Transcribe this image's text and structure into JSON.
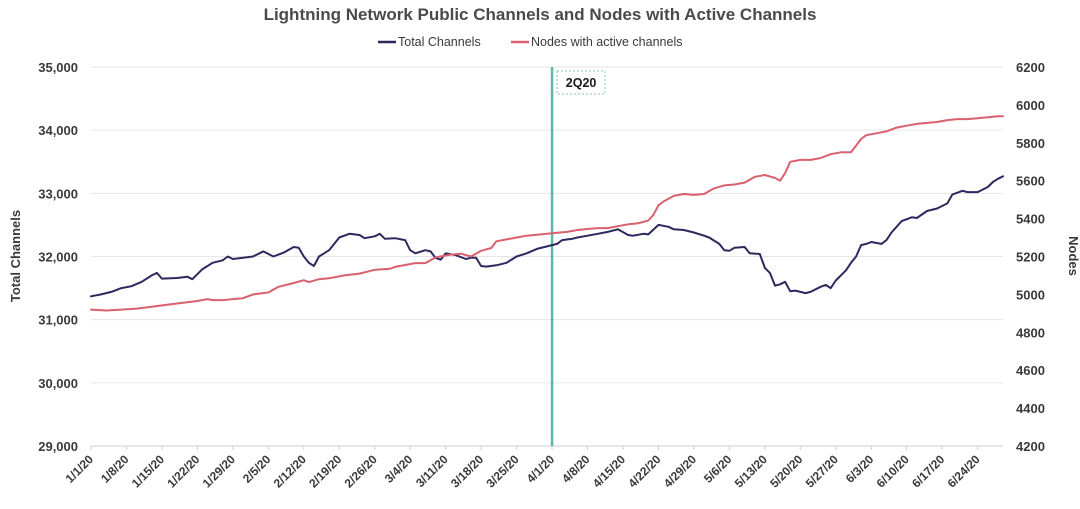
{
  "chart_data": {
    "type": "line",
    "title": "Lightning Network Public Channels and Nodes with Active Channels",
    "ylabel_left": "Total Channels",
    "ylabel_right": "Nodes",
    "ylim_left": [
      29000,
      35000
    ],
    "ylim_right": [
      4200,
      6200
    ],
    "yticks_left": [
      29000,
      30000,
      31000,
      32000,
      33000,
      34000,
      35000
    ],
    "ytick_labels_left": [
      "29,000",
      "30,000",
      "31,000",
      "32,000",
      "33,000",
      "34,000",
      "35,000"
    ],
    "yticks_right": [
      4200,
      4400,
      4600,
      4800,
      5000,
      5200,
      5400,
      5600,
      5800,
      6000,
      6200
    ],
    "ytick_labels_right": [
      "4200",
      "4400",
      "4600",
      "4800",
      "5000",
      "5200",
      "5400",
      "5600",
      "5800",
      "6000",
      "6200"
    ],
    "x_day_range": [
      0,
      180
    ],
    "x_tick_days": [
      0,
      7,
      14,
      21,
      28,
      35,
      42,
      49,
      56,
      63,
      70,
      77,
      84,
      91,
      98,
      105,
      112,
      119,
      126,
      133,
      140,
      147,
      154,
      161,
      168,
      175
    ],
    "x_tick_labels": [
      "1/1/20",
      "1/8/20",
      "1/15/20",
      "1/22/20",
      "1/29/20",
      "2/5/20",
      "2/12/20",
      "2/19/20",
      "2/26/20",
      "3/4/20",
      "3/11/20",
      "3/18/20",
      "3/25/20",
      "4/1/20",
      "4/8/20",
      "4/15/20",
      "4/22/20",
      "4/29/20",
      "5/6/20",
      "5/13/20",
      "5/20/20",
      "5/27/20",
      "6/3/20",
      "6/10/20",
      "6/17/20",
      "6/24/20"
    ],
    "marker": {
      "label": "2Q20",
      "day": 91
    },
    "grid": true,
    "legend_position": "top-center",
    "series": [
      {
        "name": "Total Channels",
        "axis": "left",
        "color": "#2b2a5e",
        "points": [
          [
            0,
            31370
          ],
          [
            2,
            31400
          ],
          [
            4,
            31440
          ],
          [
            6,
            31500
          ],
          [
            8,
            31530
          ],
          [
            10,
            31600
          ],
          [
            12,
            31700
          ],
          [
            13,
            31740
          ],
          [
            14,
            31650
          ],
          [
            17,
            31660
          ],
          [
            19,
            31680
          ],
          [
            20,
            31640
          ],
          [
            22,
            31800
          ],
          [
            24,
            31900
          ],
          [
            26,
            31940
          ],
          [
            27,
            32000
          ],
          [
            28,
            31960
          ],
          [
            30,
            31980
          ],
          [
            32,
            32000
          ],
          [
            34,
            32080
          ],
          [
            36,
            32000
          ],
          [
            38,
            32060
          ],
          [
            40,
            32150
          ],
          [
            41,
            32140
          ],
          [
            42,
            32000
          ],
          [
            43,
            31900
          ],
          [
            44,
            31850
          ],
          [
            45,
            32000
          ],
          [
            47,
            32100
          ],
          [
            49,
            32300
          ],
          [
            51,
            32360
          ],
          [
            53,
            32340
          ],
          [
            54,
            32290
          ],
          [
            56,
            32320
          ],
          [
            57,
            32360
          ],
          [
            58,
            32280
          ],
          [
            60,
            32290
          ],
          [
            62,
            32260
          ],
          [
            63,
            32100
          ],
          [
            64,
            32050
          ],
          [
            66,
            32100
          ],
          [
            67,
            32080
          ],
          [
            68,
            31980
          ],
          [
            69,
            31950
          ],
          [
            70,
            32050
          ],
          [
            72,
            32020
          ],
          [
            74,
            31960
          ],
          [
            75,
            31980
          ],
          [
            76,
            31980
          ],
          [
            77,
            31850
          ],
          [
            78,
            31840
          ],
          [
            80,
            31860
          ],
          [
            82,
            31900
          ],
          [
            84,
            32000
          ],
          [
            86,
            32050
          ],
          [
            88,
            32120
          ],
          [
            90,
            32160
          ],
          [
            92,
            32200
          ],
          [
            93,
            32260
          ],
          [
            95,
            32280
          ],
          [
            96,
            32300
          ],
          [
            98,
            32330
          ],
          [
            100,
            32360
          ],
          [
            102,
            32390
          ],
          [
            104,
            32430
          ],
          [
            106,
            32340
          ],
          [
            107,
            32330
          ],
          [
            109,
            32360
          ],
          [
            110,
            32350
          ],
          [
            112,
            32500
          ],
          [
            114,
            32470
          ],
          [
            115,
            32430
          ],
          [
            117,
            32420
          ],
          [
            119,
            32380
          ],
          [
            121,
            32330
          ],
          [
            122,
            32300
          ],
          [
            124,
            32200
          ],
          [
            125,
            32100
          ],
          [
            126,
            32090
          ],
          [
            127,
            32140
          ],
          [
            129,
            32150
          ],
          [
            130,
            32050
          ],
          [
            132,
            32040
          ],
          [
            133,
            31820
          ],
          [
            134,
            31740
          ],
          [
            135,
            31540
          ],
          [
            136,
            31560
          ],
          [
            137,
            31600
          ],
          [
            138,
            31450
          ],
          [
            139,
            31460
          ],
          [
            141,
            31420
          ],
          [
            142,
            31440
          ],
          [
            144,
            31520
          ],
          [
            145,
            31550
          ],
          [
            146,
            31500
          ],
          [
            147,
            31620
          ],
          [
            149,
            31780
          ],
          [
            150,
            31900
          ],
          [
            151,
            32000
          ],
          [
            152,
            32180
          ],
          [
            153,
            32200
          ],
          [
            154,
            32230
          ],
          [
            156,
            32200
          ],
          [
            157,
            32260
          ],
          [
            158,
            32380
          ],
          [
            160,
            32560
          ],
          [
            162,
            32620
          ],
          [
            163,
            32610
          ],
          [
            165,
            32720
          ],
          [
            167,
            32760
          ],
          [
            169,
            32840
          ],
          [
            170,
            32980
          ],
          [
            172,
            33040
          ],
          [
            173,
            33020
          ],
          [
            175,
            33020
          ],
          [
            177,
            33100
          ],
          [
            178,
            33180
          ],
          [
            179,
            33230
          ],
          [
            180,
            33270
          ]
        ]
      },
      {
        "name": "Nodes with active channels",
        "axis": "right",
        "color": "#d9606f",
        "points": [
          [
            0,
            4920
          ],
          [
            3,
            4915
          ],
          [
            6,
            4920
          ],
          [
            9,
            4925
          ],
          [
            12,
            4935
          ],
          [
            15,
            4945
          ],
          [
            18,
            4955
          ],
          [
            21,
            4965
          ],
          [
            23,
            4975
          ],
          [
            24,
            4970
          ],
          [
            26,
            4970
          ],
          [
            28,
            4975
          ],
          [
            30,
            4980
          ],
          [
            32,
            5000
          ],
          [
            35,
            5010
          ],
          [
            37,
            5040
          ],
          [
            40,
            5060
          ],
          [
            42,
            5075
          ],
          [
            43,
            5065
          ],
          [
            45,
            5080
          ],
          [
            47,
            5085
          ],
          [
            50,
            5100
          ],
          [
            53,
            5110
          ],
          [
            56,
            5130
          ],
          [
            59,
            5135
          ],
          [
            60,
            5145
          ],
          [
            62,
            5155
          ],
          [
            64,
            5165
          ],
          [
            66,
            5165
          ],
          [
            68,
            5195
          ],
          [
            71,
            5210
          ],
          [
            73,
            5215
          ],
          [
            75,
            5200
          ],
          [
            77,
            5230
          ],
          [
            79,
            5245
          ],
          [
            80,
            5280
          ],
          [
            82,
            5290
          ],
          [
            84,
            5300
          ],
          [
            86,
            5310
          ],
          [
            88,
            5315
          ],
          [
            90,
            5320
          ],
          [
            92,
            5325
          ],
          [
            94,
            5330
          ],
          [
            96,
            5340
          ],
          [
            98,
            5345
          ],
          [
            100,
            5350
          ],
          [
            102,
            5350
          ],
          [
            104,
            5360
          ],
          [
            106,
            5370
          ],
          [
            108,
            5375
          ],
          [
            110,
            5390
          ],
          [
            111,
            5420
          ],
          [
            112,
            5470
          ],
          [
            113,
            5490
          ],
          [
            115,
            5520
          ],
          [
            117,
            5530
          ],
          [
            119,
            5525
          ],
          [
            121,
            5530
          ],
          [
            123,
            5560
          ],
          [
            125,
            5575
          ],
          [
            127,
            5580
          ],
          [
            129,
            5590
          ],
          [
            131,
            5620
          ],
          [
            133,
            5630
          ],
          [
            135,
            5615
          ],
          [
            136,
            5600
          ],
          [
            137,
            5640
          ],
          [
            138,
            5700
          ],
          [
            140,
            5710
          ],
          [
            142,
            5710
          ],
          [
            144,
            5720
          ],
          [
            146,
            5740
          ],
          [
            148,
            5750
          ],
          [
            150,
            5750
          ],
          [
            152,
            5820
          ],
          [
            153,
            5840
          ],
          [
            155,
            5850
          ],
          [
            157,
            5860
          ],
          [
            159,
            5880
          ],
          [
            161,
            5890
          ],
          [
            163,
            5900
          ],
          [
            165,
            5905
          ],
          [
            167,
            5910
          ],
          [
            169,
            5920
          ],
          [
            171,
            5925
          ],
          [
            173,
            5925
          ],
          [
            175,
            5930
          ],
          [
            177,
            5935
          ],
          [
            179,
            5940
          ],
          [
            180,
            5940
          ]
        ]
      }
    ]
  }
}
